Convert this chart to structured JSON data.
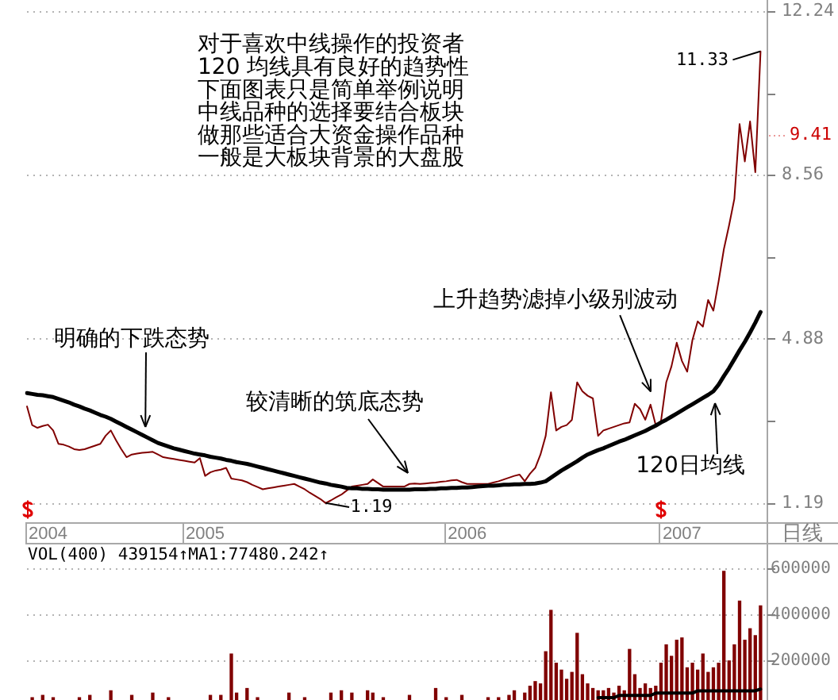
{
  "chart_data": [
    {
      "type": "line",
      "xlabel": "日线",
      "annotations": [
        "对于喜欢中线操作的投资者",
        "120 均线具有良好的趋势性",
        "下面图表只是简单举例说明",
        "中线品种的选择要结合板块",
        "做那些适合大资金操作品种",
        "一般是大板块背景的大盘股",
        "明确的下跌态势",
        "较清晰的筑底态势",
        "上升趋势滤掉小级别波动",
        "120日均线",
        "11.33",
        "1.19",
        "9.41"
      ],
      "categories": [
        null,
        null,
        null,
        null,
        "2004",
        null,
        null,
        null,
        null,
        null,
        null,
        null,
        null,
        null,
        null,
        null,
        null,
        null,
        null,
        null,
        null,
        null,
        null,
        null,
        null,
        null,
        null,
        null,
        null,
        null,
        null,
        null,
        null,
        null,
        "2005",
        null,
        null,
        null,
        null,
        null,
        null,
        null,
        null,
        null,
        null,
        null,
        null,
        null,
        null,
        null,
        null,
        null,
        null,
        null,
        null,
        null,
        null,
        null,
        null,
        null,
        null,
        null,
        null,
        null,
        null,
        null,
        null,
        null,
        null,
        null,
        null,
        null,
        null,
        null,
        null,
        null,
        null,
        null,
        null,
        null,
        null,
        null,
        null,
        null,
        "2006",
        null,
        null,
        null,
        null,
        null,
        null,
        null,
        null,
        null,
        null,
        null,
        null,
        null,
        null,
        null,
        null,
        null,
        null,
        null,
        null,
        null,
        null,
        null,
        null,
        null,
        null,
        null,
        null,
        null,
        null,
        null,
        null,
        null,
        null,
        null,
        null,
        null,
        null,
        null,
        null,
        "2007",
        null,
        null,
        null,
        null,
        null,
        null,
        null,
        null,
        null,
        null,
        null,
        null,
        null,
        null,
        null,
        null
      ],
      "ylim": [
        0.76,
        12.45
      ],
      "yticks": [
        1.19,
        {
          "value": 3.04,
          "label": null
        },
        4.88,
        {
          "value": 6.72,
          "label": null
        },
        8.56,
        {
          "value": 10.4,
          "label": null
        },
        12.24
      ],
      "grid": "y",
      "series": [
        {
          "color": "#800000",
          "values": [
            3.36,
            2.94,
            2.88,
            2.92,
            2.95,
            2.82,
            2.52,
            2.5,
            2.46,
            2.4,
            2.38,
            2.4,
            2.44,
            2.48,
            2.52,
            2.7,
            2.82,
            2.6,
            2.4,
            2.22,
            2.28,
            2.3,
            2.32,
            2.33,
            2.34,
            2.28,
            2.22,
            2.2,
            2.18,
            2.16,
            2.14,
            2.12,
            2.1,
            2.2,
            1.8,
            1.88,
            1.92,
            1.94,
            1.98,
            1.74,
            1.72,
            1.7,
            1.66,
            1.6,
            1.55,
            1.5,
            1.52,
            1.54,
            1.56,
            1.58,
            1.6,
            1.62,
            1.56,
            1.5,
            1.42,
            1.35,
            1.28,
            1.19,
            1.25,
            1.32,
            1.38,
            1.47,
            1.56,
            1.58,
            1.6,
            1.62,
            1.72,
            1.64,
            1.56,
            1.56,
            1.56,
            1.56,
            1.56,
            1.62,
            1.63,
            1.62,
            1.63,
            1.64,
            1.65,
            1.67,
            1.68,
            1.7,
            1.71,
            1.66,
            1.62,
            1.62,
            1.62,
            1.62,
            1.62,
            1.65,
            1.68,
            1.72,
            1.76,
            1.8,
            1.83,
            1.68,
            1.85,
            1.98,
            2.28,
            2.7,
            3.68,
            2.82,
            2.9,
            2.94,
            3.06,
            3.9,
            3.7,
            3.6,
            3.54,
            2.7,
            2.82,
            2.86,
            2.9,
            2.94,
            2.98,
            3.0,
            3.42,
            3.3,
            3.06,
            3.4,
            2.94,
            3.03,
            3.9,
            4.26,
            4.79,
            4.38,
            4.14,
            4.85,
            5.27,
            5.15,
            5.75,
            5.51,
            6.17,
            6.89,
            7.43,
            8.02,
            9.7,
            8.86,
            9.76,
            8.62,
            11.33,
            null
          ]
        },
        {
          "color": "#000000",
          "values": [
            3.66,
            3.64,
            3.62,
            3.61,
            3.59,
            3.57,
            3.53,
            3.49,
            3.45,
            3.4,
            3.36,
            3.31,
            3.27,
            3.22,
            3.17,
            3.13,
            3.08,
            3.02,
            2.96,
            2.9,
            2.84,
            2.78,
            2.72,
            2.66,
            2.6,
            2.54,
            2.5,
            2.46,
            2.42,
            2.39,
            2.36,
            2.33,
            2.3,
            2.28,
            2.26,
            2.23,
            2.21,
            2.19,
            2.16,
            2.14,
            2.11,
            2.09,
            2.07,
            2.04,
            2.01,
            1.98,
            1.95,
            1.92,
            1.89,
            1.86,
            1.83,
            1.8,
            1.77,
            1.74,
            1.71,
            1.68,
            1.65,
            1.63,
            1.6,
            1.58,
            1.56,
            1.53,
            1.52,
            1.52,
            1.51,
            1.51,
            1.5,
            1.5,
            1.49,
            1.49,
            1.49,
            1.49,
            1.49,
            1.49,
            1.5,
            1.5,
            1.5,
            1.51,
            1.51,
            1.52,
            1.52,
            1.53,
            1.53,
            1.54,
            1.54,
            1.55,
            1.56,
            1.57,
            1.58,
            1.58,
            1.59,
            1.6,
            1.6,
            1.61,
            1.61,
            1.62,
            1.62,
            1.63,
            1.65,
            1.68,
            1.76,
            1.84,
            1.92,
            1.99,
            2.06,
            2.13,
            2.21,
            2.28,
            2.33,
            2.38,
            2.42,
            2.47,
            2.52,
            2.57,
            2.61,
            2.66,
            2.71,
            2.76,
            2.81,
            2.87,
            2.93,
            3.0,
            3.06,
            3.13,
            3.2,
            3.27,
            3.34,
            3.41,
            3.48,
            3.55,
            3.62,
            3.7,
            3.85,
            4.04,
            4.22,
            4.42,
            4.62,
            4.81,
            5.02,
            5.24,
            5.48,
            null
          ]
        }
      ]
    },
    {
      "type": "bar",
      "title": "VOL(400) 439154↑MA1:77480.242↑",
      "ylim": [
        30000,
        700000
      ],
      "yticks": [
        200000,
        400000,
        600000
      ],
      "grid": "y",
      "tick_labels": "y",
      "categories": [
        null,
        null,
        null,
        null,
        "2004",
        null,
        null,
        null,
        null,
        null,
        null,
        null,
        null,
        null,
        null,
        null,
        null,
        null,
        null,
        null,
        null,
        null,
        null,
        null,
        null,
        null,
        null,
        null,
        null,
        null,
        null,
        null,
        null,
        null,
        "2005",
        null,
        null,
        null,
        null,
        null,
        null,
        null,
        null,
        null,
        null,
        null,
        null,
        null,
        null,
        null,
        null,
        null,
        null,
        null,
        null,
        null,
        null,
        null,
        null,
        null,
        null,
        null,
        null,
        null,
        null,
        null,
        null,
        null,
        null,
        null,
        null,
        null,
        null,
        null,
        null,
        null,
        null,
        null,
        null,
        null,
        null,
        null,
        null,
        null,
        "2006",
        null,
        null,
        null,
        null,
        null,
        null,
        null,
        null,
        null,
        null,
        null,
        null,
        null,
        null,
        null,
        null,
        null,
        null,
        null,
        null,
        null,
        null,
        null,
        null,
        null,
        null,
        null,
        null,
        null,
        null,
        null,
        null,
        null,
        null,
        null,
        null,
        null,
        null,
        null,
        null,
        "2007",
        null,
        null,
        null,
        null,
        null,
        null,
        null,
        null,
        null,
        null,
        null,
        null,
        null,
        null,
        null,
        null
      ],
      "series": [
        {
          "type": "bar",
          "color": "#800000",
          "values": [
            null,
            40000,
            null,
            50000,
            null,
            40000,
            null,
            null,
            null,
            null,
            40000,
            null,
            50000,
            null,
            null,
            null,
            70000,
            null,
            null,
            null,
            50000,
            null,
            null,
            null,
            60000,
            null,
            null,
            40000,
            null,
            null,
            null,
            null,
            null,
            null,
            null,
            50000,
            null,
            50000,
            null,
            230000,
            60000,
            null,
            80000,
            null,
            40000,
            null,
            null,
            null,
            null,
            null,
            60000,
            null,
            null,
            40000,
            null,
            null,
            null,
            null,
            60000,
            null,
            70000,
            null,
            60000,
            null,
            null,
            70000,
            60000,
            null,
            40000,
            null,
            null,
            null,
            null,
            50000,
            null,
            null,
            null,
            null,
            80000,
            null,
            40000,
            null,
            null,
            50000,
            null,
            null,
            null,
            null,
            40000,
            null,
            40000,
            null,
            50000,
            70000,
            null,
            60000,
            90000,
            110000,
            100000,
            240000,
            420000,
            190000,
            160000,
            120000,
            150000,
            320000,
            140000,
            100000,
            80000,
            70000,
            70000,
            80000,
            60000,
            90000,
            70000,
            250000,
            140000,
            80000,
            100000,
            80000,
            90000,
            190000,
            270000,
            220000,
            290000,
            300000,
            170000,
            190000,
            160000,
            230000,
            150000,
            170000,
            190000,
            590000,
            200000,
            270000,
            460000,
            290000,
            340000,
            310000,
            439154,
            null
          ]
        },
        {
          "type": "line",
          "color": "#000000",
          "values": [
            null,
            null,
            null,
            null,
            null,
            null,
            null,
            null,
            null,
            null,
            null,
            null,
            null,
            null,
            null,
            null,
            null,
            null,
            null,
            null,
            null,
            null,
            null,
            null,
            null,
            null,
            null,
            null,
            null,
            null,
            null,
            null,
            null,
            null,
            null,
            null,
            null,
            null,
            null,
            null,
            null,
            null,
            null,
            null,
            null,
            null,
            null,
            null,
            null,
            null,
            null,
            null,
            null,
            null,
            null,
            null,
            null,
            null,
            null,
            null,
            null,
            null,
            null,
            null,
            null,
            null,
            null,
            null,
            null,
            null,
            null,
            null,
            null,
            null,
            null,
            null,
            null,
            null,
            null,
            null,
            null,
            null,
            null,
            null,
            null,
            null,
            null,
            null,
            null,
            null,
            null,
            null,
            null,
            null,
            null,
            null,
            null,
            null,
            null,
            null,
            null,
            null,
            null,
            null,
            null,
            null,
            null,
            null,
            null,
            40000,
            40000,
            40000,
            40000,
            50000,
            50000,
            50000,
            50000,
            50000,
            50000,
            50000,
            60000,
            60000,
            60000,
            60000,
            60000,
            60000,
            60000,
            60000,
            70000,
            70000,
            70000,
            70000,
            70000,
            70000,
            70000,
            70000,
            70000,
            70000,
            70000,
            70000,
            77480,
            null
          ]
        }
      ]
    }
  ]
}
